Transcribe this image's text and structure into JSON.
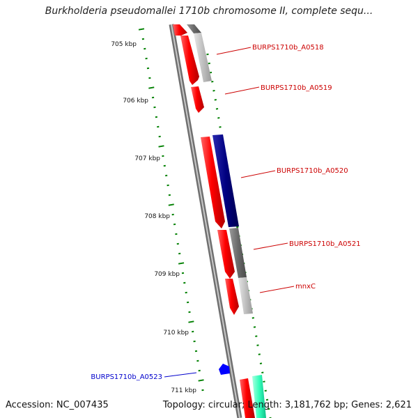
{
  "title": "Burkholderia pseudomallei 1710b chromosome II, complete sequ...",
  "footer": {
    "accession": "Accession: NC_007435",
    "summary": "Topology: circular; Length: 3,181,762 bp; Genes: 2,621"
  },
  "ticks": [
    "705 kbp",
    "706 kbp",
    "707 kbp",
    "708 kbp",
    "709 kbp",
    "710 kbp",
    "711 kbp"
  ],
  "genes": [
    {
      "name": "BURPS1710b_A0518",
      "strand": "+",
      "color": "#ff0000"
    },
    {
      "name": "BURPS1710b_A0519",
      "strand": "+",
      "color": "#ff0000"
    },
    {
      "name": "BURPS1710b_A0520",
      "strand": "+",
      "color": "#ff0000"
    },
    {
      "name": "BURPS1710b_A0521",
      "strand": "+",
      "color": "#ff0000"
    },
    {
      "name": "mnxC",
      "strand": "+",
      "color": "#ff0000"
    },
    {
      "name": "BURPS1710b_A0523",
      "strand": "-",
      "color": "#0000ff"
    }
  ],
  "colors": {
    "cds": "#ff0000",
    "cds_minus": "#0000ff",
    "blast_dark": "#000080",
    "cog_gray": "#707070",
    "cog_light": "#c0c0c0",
    "cog_teal": "#33ffbb",
    "tick": "#008000",
    "backbone": "#808080"
  }
}
